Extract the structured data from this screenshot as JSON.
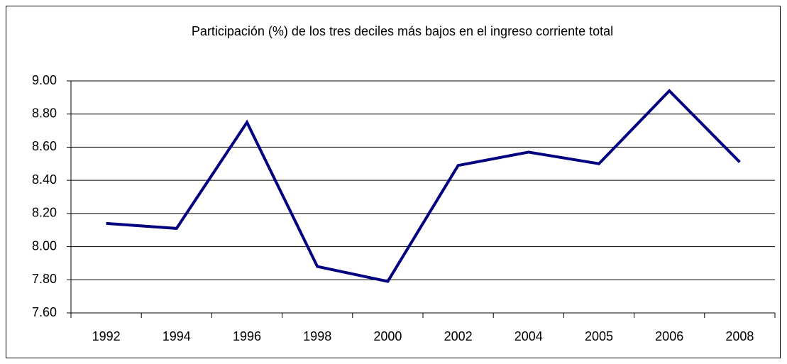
{
  "chart_data": {
    "type": "line",
    "title": "Participación (%) de los tres deciles más bajos en el ingreso corriente total",
    "categories": [
      "1992",
      "1994",
      "1996",
      "1998",
      "2000",
      "2002",
      "2004",
      "2005",
      "2006",
      "2008"
    ],
    "series": [
      {
        "color": "#000080",
        "values": [
          8.14,
          8.11,
          8.75,
          7.88,
          7.79,
          8.49,
          8.57,
          8.5,
          8.94,
          8.51
        ]
      }
    ],
    "ylim": [
      7.6,
      9.0
    ],
    "yticks": [
      {
        "value": 7.6,
        "label": "7.60"
      },
      {
        "value": 7.8,
        "label": "7.80"
      },
      {
        "value": 8.0,
        "label": "8.00"
      },
      {
        "value": 8.2,
        "label": "8.20"
      },
      {
        "value": 8.4,
        "label": "8.40"
      },
      {
        "value": 8.6,
        "label": "8.60"
      },
      {
        "value": 8.8,
        "label": "8.80"
      },
      {
        "value": 9.0,
        "label": "9.00"
      }
    ],
    "grid": true
  }
}
